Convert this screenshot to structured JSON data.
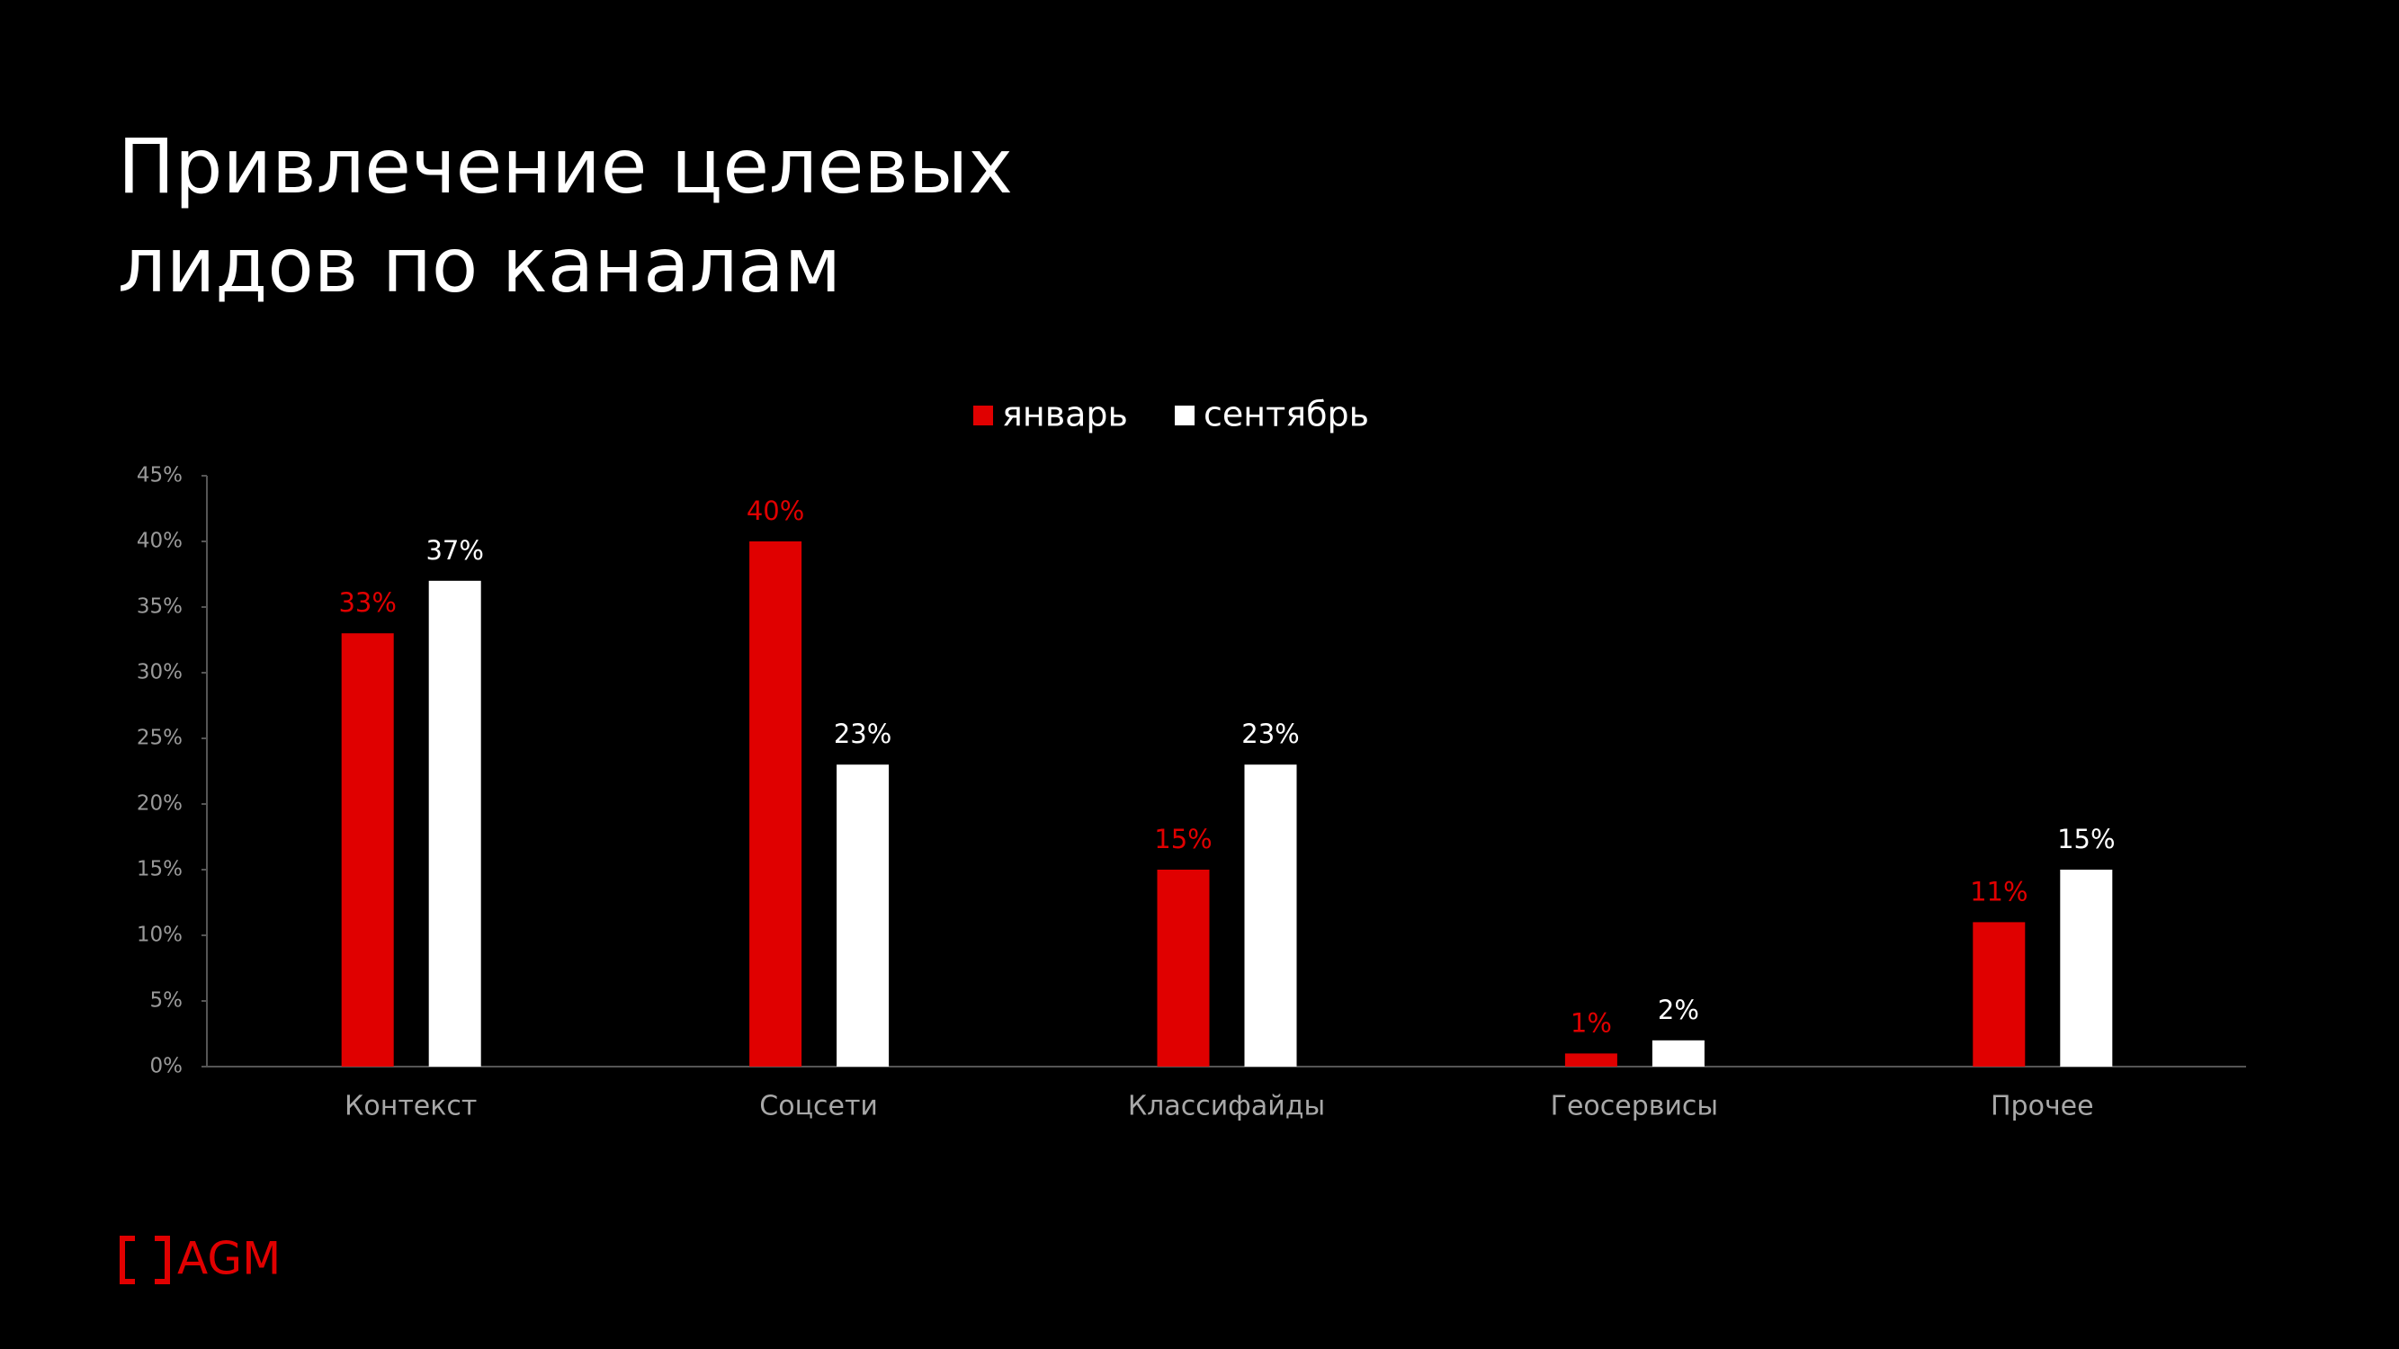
{
  "chart_data": {
    "type": "bar",
    "title": "Привлечение целевых лидов по каналам",
    "categories": [
      "Контекст",
      "Соцсети",
      "Классифайды",
      "Геосервисы",
      "Прочее"
    ],
    "series": [
      {
        "name": "январь",
        "color": "#e00000",
        "values": [
          33,
          40,
          15,
          1,
          11
        ],
        "value_labels": [
          "33%",
          "40%",
          "15%",
          "1%",
          "11%"
        ]
      },
      {
        "name": "сентябрь",
        "color": "#ffffff",
        "values": [
          37,
          23,
          23,
          2,
          15
        ],
        "value_labels": [
          "37%",
          "23%",
          "23%",
          "2%",
          "15%"
        ]
      }
    ],
    "ylim": [
      0,
      45
    ],
    "yticks": [
      {
        "value": 0,
        "label": "0%"
      },
      {
        "value": 5,
        "label": "5%"
      },
      {
        "value": 10,
        "label": "10%"
      },
      {
        "value": 15,
        "label": "15%"
      },
      {
        "value": 20,
        "label": "20%"
      },
      {
        "value": 25,
        "label": "25%"
      },
      {
        "value": 30,
        "label": "30%"
      },
      {
        "value": 35,
        "label": "35%"
      },
      {
        "value": 40,
        "label": "40%"
      },
      {
        "value": 45,
        "label": "45%"
      }
    ],
    "grid": false,
    "logo": "AGM"
  }
}
